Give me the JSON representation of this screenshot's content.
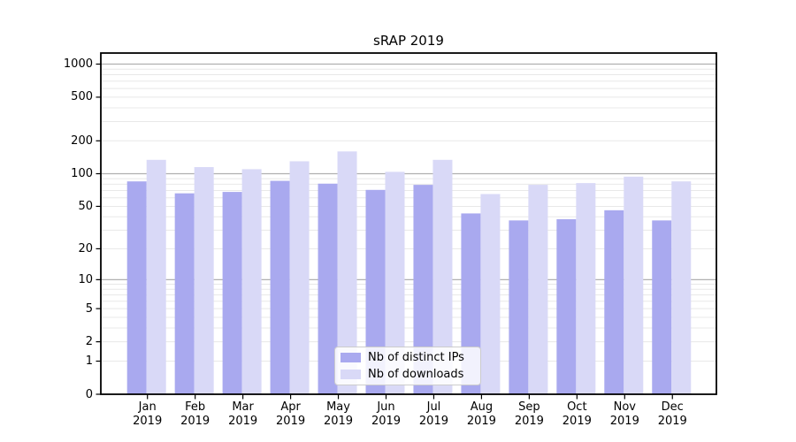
{
  "title": "sRAP 2019",
  "colors": {
    "distinct_ips": "#a9a9ef",
    "downloads": "#d9d9f7",
    "grid_major": "#b0b0b0",
    "grid_minor": "#e8e8e8",
    "spine": "#000000"
  },
  "legend": {
    "items": [
      {
        "label": "Nb of distinct IPs",
        "series": "distinct_ips"
      },
      {
        "label": "Nb of downloads",
        "series": "downloads"
      }
    ]
  },
  "y_axis": {
    "tick_labels": [
      "0",
      "1",
      "2",
      "5",
      "10",
      "20",
      "50",
      "100",
      "200",
      "500",
      "1000"
    ],
    "tick_values": [
      0,
      1,
      2,
      5,
      10,
      20,
      50,
      100,
      200,
      500,
      1000
    ]
  },
  "x_axis": {
    "categories": [
      {
        "month": "Jan",
        "year": "2019"
      },
      {
        "month": "Feb",
        "year": "2019"
      },
      {
        "month": "Mar",
        "year": "2019"
      },
      {
        "month": "Apr",
        "year": "2019"
      },
      {
        "month": "May",
        "year": "2019"
      },
      {
        "month": "Jun",
        "year": "2019"
      },
      {
        "month": "Jul",
        "year": "2019"
      },
      {
        "month": "Aug",
        "year": "2019"
      },
      {
        "month": "Sep",
        "year": "2019"
      },
      {
        "month": "Oct",
        "year": "2019"
      },
      {
        "month": "Nov",
        "year": "2019"
      },
      {
        "month": "Dec",
        "year": "2019"
      }
    ]
  },
  "chart_data": {
    "type": "bar",
    "title": "sRAP 2019",
    "categories": [
      "Jan 2019",
      "Feb 2019",
      "Mar 2019",
      "Apr 2019",
      "May 2019",
      "Jun 2019",
      "Jul 2019",
      "Aug 2019",
      "Sep 2019",
      "Oct 2019",
      "Nov 2019",
      "Dec 2019"
    ],
    "series": [
      {
        "name": "Nb of distinct IPs",
        "color": "#a9a9ef",
        "values": [
          85,
          66,
          68,
          86,
          81,
          71,
          79,
          43,
          37,
          38,
          46,
          37
        ]
      },
      {
        "name": "Nb of downloads",
        "color": "#d9d9f7",
        "values": [
          134,
          115,
          110,
          130,
          160,
          104,
          134,
          65,
          79,
          82,
          94,
          85
        ]
      }
    ],
    "xlabel": "",
    "ylabel": "",
    "y_scale": "symlog: y proportional to log10(value+1)",
    "y_ticks": [
      0,
      1,
      2,
      5,
      10,
      20,
      50,
      100,
      200,
      500,
      1000
    ],
    "ylim": [
      0,
      1260
    ],
    "grid": true,
    "legend_position": "lower center"
  }
}
